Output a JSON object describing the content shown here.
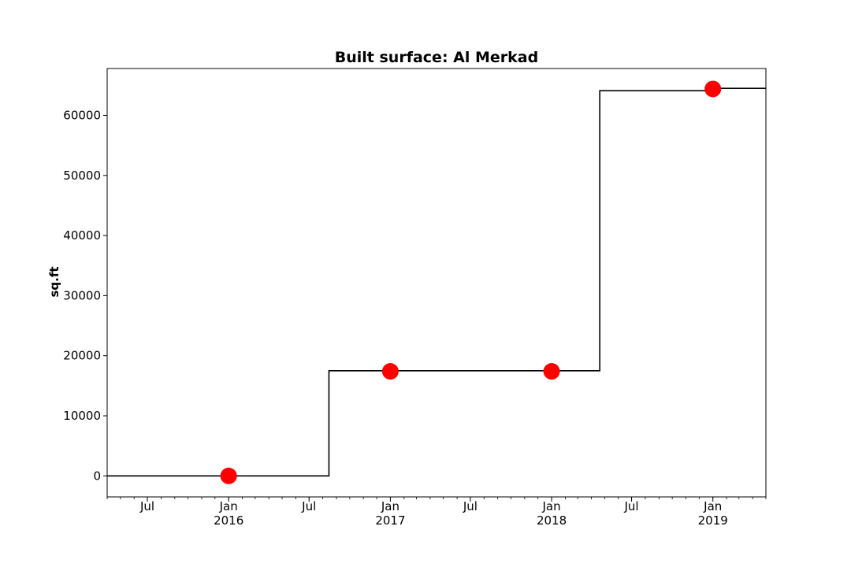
{
  "chart_data": {
    "type": "line",
    "title": "Built surface: Al Merkad",
    "xlabel": "",
    "ylabel": "sq.ft",
    "xlim": [
      "2015-04-01",
      "2019-05-01"
    ],
    "ylim": [
      -3500,
      67800
    ],
    "grid": false,
    "x_ticks": [
      {
        "date": "2015-07-01",
        "label": "Jul",
        "sublabel": ""
      },
      {
        "date": "2016-01-01",
        "label": "Jan",
        "sublabel": "2016"
      },
      {
        "date": "2016-07-01",
        "label": "Jul",
        "sublabel": ""
      },
      {
        "date": "2017-01-01",
        "label": "Jan",
        "sublabel": "2017"
      },
      {
        "date": "2017-07-01",
        "label": "Jul",
        "sublabel": ""
      },
      {
        "date": "2018-01-01",
        "label": "Jan",
        "sublabel": "2018"
      },
      {
        "date": "2018-07-01",
        "label": "Jul",
        "sublabel": ""
      },
      {
        "date": "2019-01-01",
        "label": "Jan",
        "sublabel": "2019"
      }
    ],
    "y_ticks": [
      0,
      10000,
      20000,
      30000,
      40000,
      50000,
      60000
    ],
    "series": [
      {
        "style": "step",
        "color": "#000000",
        "x": [
          "2015-04-01",
          "2016-08-15",
          "2016-08-15",
          "2018-04-20",
          "2018-04-20",
          "2018-12-25",
          "2018-12-25",
          "2019-05-01"
        ],
        "y": [
          0,
          0,
          17500,
          17500,
          64100,
          64100,
          64500,
          64500
        ]
      },
      {
        "style": "markers",
        "color": "#ff0000",
        "x": [
          "2016-01-01",
          "2017-01-01",
          "2018-01-01",
          "2019-01-01"
        ],
        "y": [
          0,
          17400,
          17400,
          64400
        ]
      }
    ]
  }
}
